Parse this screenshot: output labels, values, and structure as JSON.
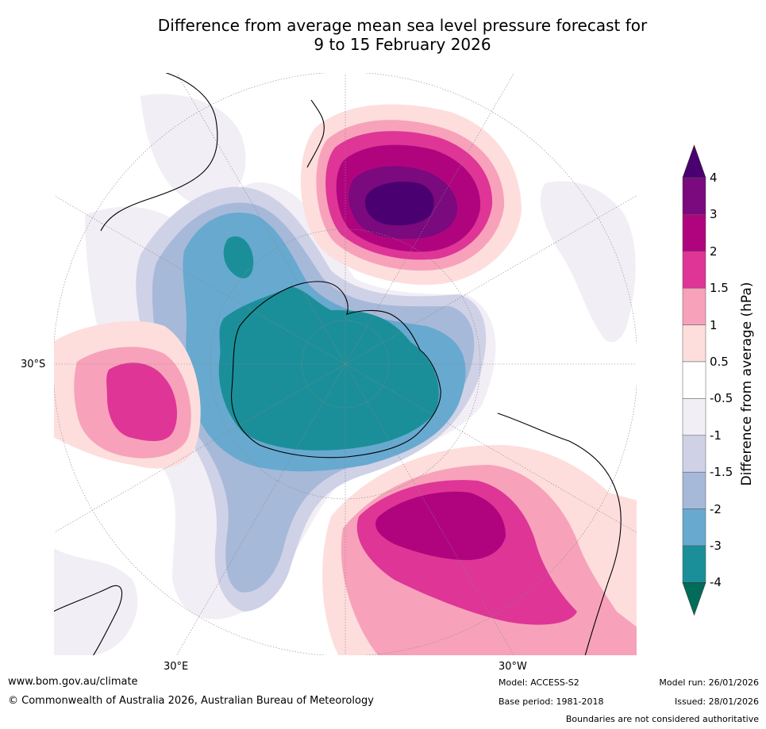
{
  "title_line1": "Difference from average mean sea level pressure forecast for",
  "title_line2": "9 to 15 February 2026",
  "map": {
    "lat_label": "30°S",
    "lon_label_left": "30°E",
    "lon_label_right": "30°W"
  },
  "colorbar": {
    "title": "Difference from average (hPa)",
    "tick_labels": [
      "4",
      "3",
      "2",
      "1.5",
      "1",
      "0.5",
      "-0.5",
      "-1",
      "-1.5",
      "-2",
      "-3",
      "-4"
    ],
    "colors": {
      "gt4": "#4a0070",
      "3to4": "#7a0a7d",
      "2to3": "#b0047f",
      "1.5to2": "#de3597",
      "1to1.5": "#f7a2ba",
      "0.5to1": "#fddedd",
      "neutral": "#ffffff",
      "m1to-0.5": "#f1eef5",
      "m1.5to-1": "#cfd1e6",
      "m2to-1.5": "#a7b9d9",
      "m3to-2": "#68a9d0",
      "m4to-3": "#1b8f99",
      "lt-4": "#016c59"
    }
  },
  "footer": {
    "website": "www.bom.gov.au/climate",
    "copyright": "© Commonwealth of Australia 2026, Australian Bureau of Meteorology",
    "model": "Model: ACCESS-S2",
    "base_period": "Base period: 1981-2018",
    "model_run": "Model run: 26/01/2026",
    "issued": "Issued: 28/01/2026",
    "disclaimer": "Boundaries are not considered authoritative"
  }
}
